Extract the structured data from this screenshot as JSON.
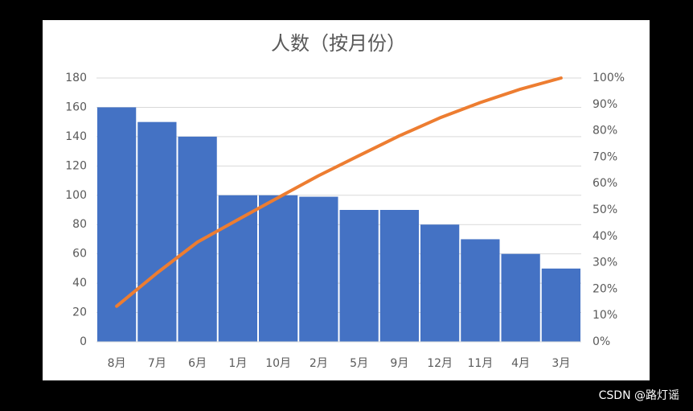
{
  "chart_data": {
    "type": "bar",
    "title": "人数（按月份）",
    "categories": [
      "8月",
      "7月",
      "6月",
      "1月",
      "10月",
      "2月",
      "5月",
      "9月",
      "12月",
      "11月",
      "4月",
      "3月"
    ],
    "series": [
      {
        "type": "bar",
        "color": "#4472c4",
        "values": [
          160,
          150,
          140,
          100,
          100,
          99,
          90,
          90,
          80,
          70,
          60,
          50
        ]
      },
      {
        "type": "line",
        "axis": "y2",
        "color": "#ed7d31",
        "values": [
          13.5,
          26.1,
          37.8,
          46.3,
          54.7,
          63.0,
          70.6,
          78.1,
          84.9,
          90.7,
          95.8,
          100
        ]
      }
    ],
    "ylim": [
      0,
      180
    ],
    "yticks": [
      0,
      20,
      40,
      60,
      80,
      100,
      120,
      140,
      160,
      180
    ],
    "y2lim": [
      0,
      100
    ],
    "y2ticks": [
      {
        "value": 0,
        "label": "0%"
      },
      {
        "value": 10,
        "label": "10%"
      },
      {
        "value": 20,
        "label": "20%"
      },
      {
        "value": 30,
        "label": "30%"
      },
      {
        "value": 40,
        "label": "40%"
      },
      {
        "value": 50,
        "label": "50%"
      },
      {
        "value": 60,
        "label": "60%"
      },
      {
        "value": 70,
        "label": "70%"
      },
      {
        "value": 80,
        "label": "80%"
      },
      {
        "value": 90,
        "label": "90%"
      },
      {
        "value": 100,
        "label": "100%"
      }
    ],
    "grid": true
  },
  "watermark": "CSDN @路灯谣"
}
